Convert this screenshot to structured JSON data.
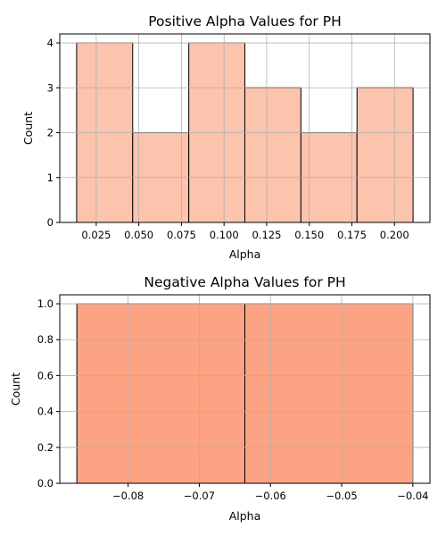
{
  "chart_data": [
    {
      "type": "bar",
      "title": "Positive Alpha Values for PH",
      "xlabel": "Alpha",
      "ylabel": "Count",
      "bin_edges": [
        0.0135,
        0.0464,
        0.0793,
        0.1122,
        0.1451,
        0.178,
        0.2109
      ],
      "values": [
        4,
        2,
        4,
        3,
        2,
        3
      ],
      "xlim": [
        0.0036,
        0.2208
      ],
      "ylim": [
        0,
        4.2
      ],
      "xticks": [
        0.025,
        0.05,
        0.075,
        0.1,
        0.125,
        0.15,
        0.175,
        0.2
      ],
      "xtick_labels": [
        "0.025",
        "0.050",
        "0.075",
        "0.100",
        "0.125",
        "0.150",
        "0.175",
        "0.200"
      ],
      "yticks": [
        0,
        1,
        2,
        3,
        4
      ],
      "ytick_labels": [
        "0",
        "1",
        "2",
        "3",
        "4"
      ],
      "bar_color": "#fcc3ad",
      "edge_color": "#000000",
      "grid": true
    },
    {
      "type": "bar",
      "title": "Negative Alpha Values for PH",
      "xlabel": "Alpha",
      "ylabel": "Count",
      "bin_edges": [
        -0.0872,
        -0.0636,
        -0.04
      ],
      "values": [
        1,
        1
      ],
      "xlim": [
        -0.0896,
        -0.0376
      ],
      "ylim": [
        0,
        1.05
      ],
      "xticks": [
        -0.08,
        -0.07,
        -0.06,
        -0.05,
        -0.04
      ],
      "xtick_labels": [
        "−0.08",
        "−0.07",
        "−0.06",
        "−0.05",
        "−0.04"
      ],
      "yticks": [
        0,
        0.2,
        0.4,
        0.6,
        0.8,
        1.0
      ],
      "ytick_labels": [
        "0.0",
        "0.2",
        "0.4",
        "0.6",
        "0.8",
        "1.0"
      ],
      "bar_color": "#fca383",
      "edge_color": "#000000",
      "grid": true
    }
  ]
}
